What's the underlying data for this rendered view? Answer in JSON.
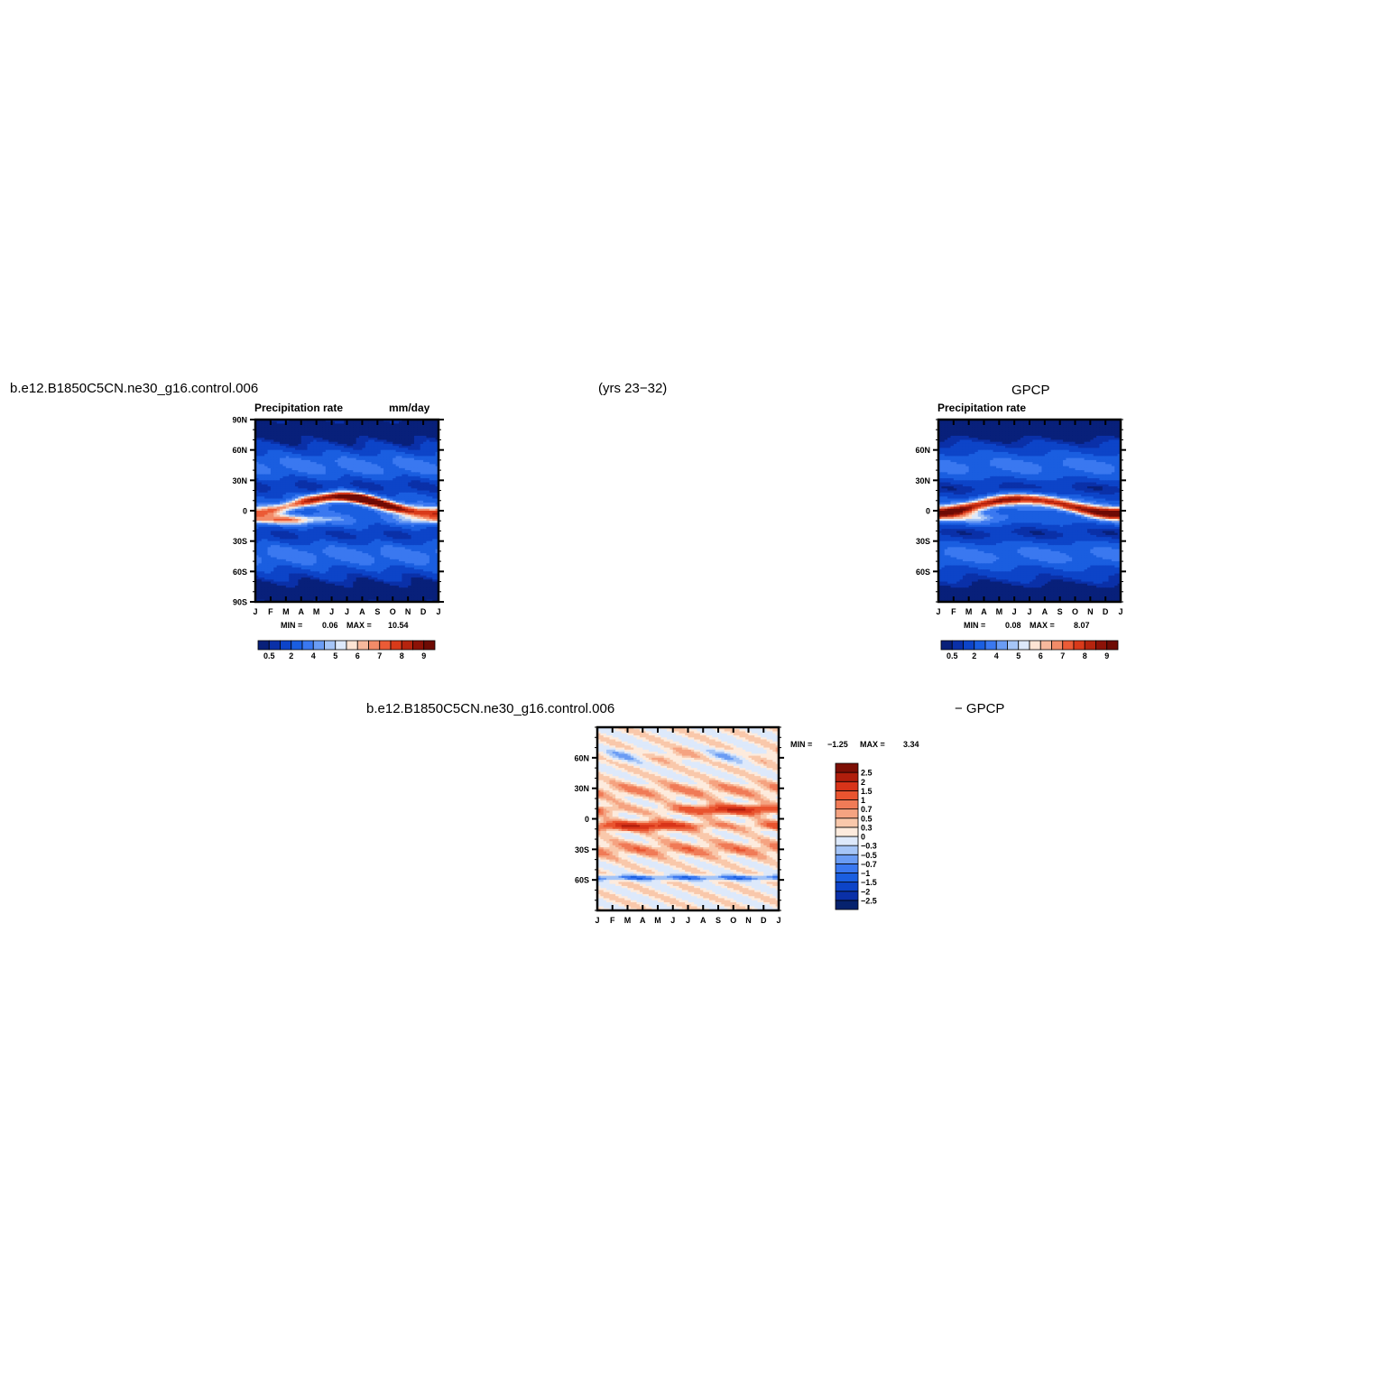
{
  "page": {
    "top_left_title": "b.e12.B1850C5CN.ne30_g16.control.006",
    "top_center_title": "(yrs 23−32)",
    "top_right_title": "GPCP",
    "bottom_left_title": "b.e12.B1850C5CN.ne30_g16.control.006",
    "bottom_right_title": "− GPCP"
  },
  "chart_data": [
    {
      "id": "model",
      "type": "heatmap",
      "title": "Precipitation  rate",
      "units": "mm/day",
      "x_ticks": [
        "J",
        "F",
        "M",
        "A",
        "M",
        "J",
        "J",
        "A",
        "S",
        "O",
        "N",
        "D",
        "J"
      ],
      "y_ticks": [
        "90N",
        "60N",
        "30N",
        "0",
        "30S",
        "60S",
        "90S"
      ],
      "y_tick_values": [
        90,
        60,
        30,
        0,
        -30,
        -60,
        -90
      ],
      "ylim": [
        -90,
        90
      ],
      "min_label": "MIN =",
      "min_value": "0.06",
      "max_label": "MAX =",
      "max_value": "10.54",
      "colorbar_labels": [
        "0.5",
        "2",
        "4",
        "5",
        "6",
        "7",
        "8",
        "9"
      ],
      "colorbar_label_bins": [
        1,
        3,
        5,
        7,
        9,
        11,
        13,
        15
      ]
    },
    {
      "id": "obs",
      "type": "heatmap",
      "title": "Precipitation  rate",
      "x_ticks": [
        "J",
        "F",
        "M",
        "A",
        "M",
        "J",
        "J",
        "A",
        "S",
        "O",
        "N",
        "D",
        "J"
      ],
      "y_ticks": [
        "60N",
        "30N",
        "0",
        "30S",
        "60S"
      ],
      "y_tick_values": [
        60,
        30,
        0,
        -30,
        -60
      ],
      "ylim": [
        -90,
        90
      ],
      "min_label": "MIN =",
      "min_value": "0.08",
      "max_label": "MAX =",
      "max_value": "8.07",
      "colorbar_labels": [
        "0.5",
        "2",
        "4",
        "5",
        "6",
        "7",
        "8",
        "9"
      ],
      "colorbar_label_bins": [
        1,
        3,
        5,
        7,
        9,
        11,
        13,
        15
      ]
    },
    {
      "id": "diff",
      "type": "heatmap",
      "x_ticks": [
        "J",
        "F",
        "M",
        "A",
        "M",
        "J",
        "J",
        "A",
        "S",
        "O",
        "N",
        "D",
        "J"
      ],
      "y_ticks": [
        "60N",
        "30N",
        "0",
        "30S",
        "60S"
      ],
      "y_tick_values": [
        60,
        30,
        0,
        -30,
        -60
      ],
      "ylim": [
        -90,
        90
      ],
      "min_label": "MIN =",
      "min_value": "−1.25",
      "max_label": "MAX =",
      "max_value": "3.34",
      "colorbar_levels": [
        "2.5",
        "2",
        "1.5",
        "1",
        "0.7",
        "0.5",
        "0.3",
        "0",
        "−0.3",
        "−0.5",
        "−0.7",
        "−1",
        "−1.5",
        "−2",
        "−2.5"
      ]
    }
  ],
  "colors": {
    "seq_palette": [
      "#08207a",
      "#0a30a8",
      "#0d44c8",
      "#1a5ee0",
      "#3a78f0",
      "#6a9cf4",
      "#a5c5f7",
      "#dde9fb",
      "#fde4d4",
      "#f7b89c",
      "#f28b68",
      "#eb5b36",
      "#d93a1a",
      "#b5240e",
      "#8c1207",
      "#6e0b04"
    ],
    "div_palette": [
      "#06226e",
      "#0a30a8",
      "#0d44c8",
      "#1a5ee0",
      "#3a78f0",
      "#6a9cf4",
      "#a5c5f7",
      "#dde9fb",
      "#fdebdd",
      "#f9c8ab",
      "#f5a381",
      "#f07b57",
      "#e9542f",
      "#d83419",
      "#b01e0c",
      "#7d0f05"
    ]
  }
}
